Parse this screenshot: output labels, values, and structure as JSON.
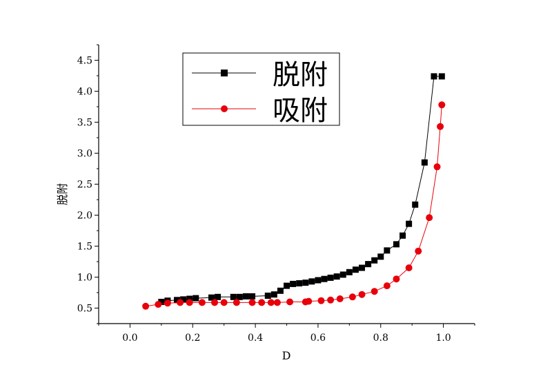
{
  "chart_data": {
    "type": "line",
    "xlabel": "D",
    "ylabel": "脱附",
    "xlim": [
      -0.1,
      1.1
    ],
    "ylim": [
      0.25,
      4.75
    ],
    "xticks": [
      "0.0",
      "0.2",
      "0.4",
      "0.6",
      "0.8",
      "1.0"
    ],
    "xtick_values": [
      0.0,
      0.2,
      0.4,
      0.6,
      0.8,
      1.0
    ],
    "yticks": [
      "0.5",
      "1.0",
      "1.5",
      "2.0",
      "2.5",
      "3.0",
      "3.5",
      "4.0",
      "4.5"
    ],
    "ytick_values": [
      0.5,
      1.0,
      1.5,
      2.0,
      2.5,
      3.0,
      3.5,
      4.0,
      4.5
    ],
    "legend_position": "top-left",
    "grid": false,
    "series": [
      {
        "name": "脱附",
        "color": "#000000",
        "marker": "square",
        "x": [
          0.1,
          0.12,
          0.15,
          0.17,
          0.19,
          0.21,
          0.26,
          0.28,
          0.33,
          0.35,
          0.37,
          0.39,
          0.44,
          0.46,
          0.48,
          0.5,
          0.52,
          0.54,
          0.56,
          0.58,
          0.6,
          0.62,
          0.64,
          0.66,
          0.68,
          0.7,
          0.72,
          0.74,
          0.76,
          0.78,
          0.8,
          0.82,
          0.85,
          0.87,
          0.89,
          0.91,
          0.94,
          0.97,
          0.995
        ],
        "y": [
          0.6,
          0.62,
          0.63,
          0.64,
          0.65,
          0.66,
          0.67,
          0.68,
          0.68,
          0.68,
          0.69,
          0.69,
          0.7,
          0.72,
          0.78,
          0.86,
          0.89,
          0.9,
          0.91,
          0.93,
          0.95,
          0.97,
          0.99,
          1.01,
          1.04,
          1.08,
          1.12,
          1.15,
          1.21,
          1.27,
          1.33,
          1.43,
          1.53,
          1.67,
          1.86,
          2.17,
          2.85,
          4.24,
          4.24
        ]
      },
      {
        "name": "吸附",
        "color": "#e8000b",
        "marker": "circle",
        "x": [
          0.05,
          0.09,
          0.12,
          0.16,
          0.19,
          0.23,
          0.27,
          0.3,
          0.34,
          0.39,
          0.42,
          0.45,
          0.47,
          0.51,
          0.56,
          0.57,
          0.61,
          0.64,
          0.67,
          0.71,
          0.74,
          0.78,
          0.82,
          0.85,
          0.89,
          0.92,
          0.955,
          0.98,
          0.99,
          0.995
        ],
        "y": [
          0.53,
          0.56,
          0.58,
          0.59,
          0.59,
          0.59,
          0.59,
          0.59,
          0.59,
          0.59,
          0.59,
          0.59,
          0.59,
          0.6,
          0.6,
          0.61,
          0.62,
          0.63,
          0.65,
          0.68,
          0.72,
          0.77,
          0.86,
          0.97,
          1.15,
          1.42,
          1.96,
          2.78,
          3.43,
          3.78
        ]
      }
    ]
  }
}
